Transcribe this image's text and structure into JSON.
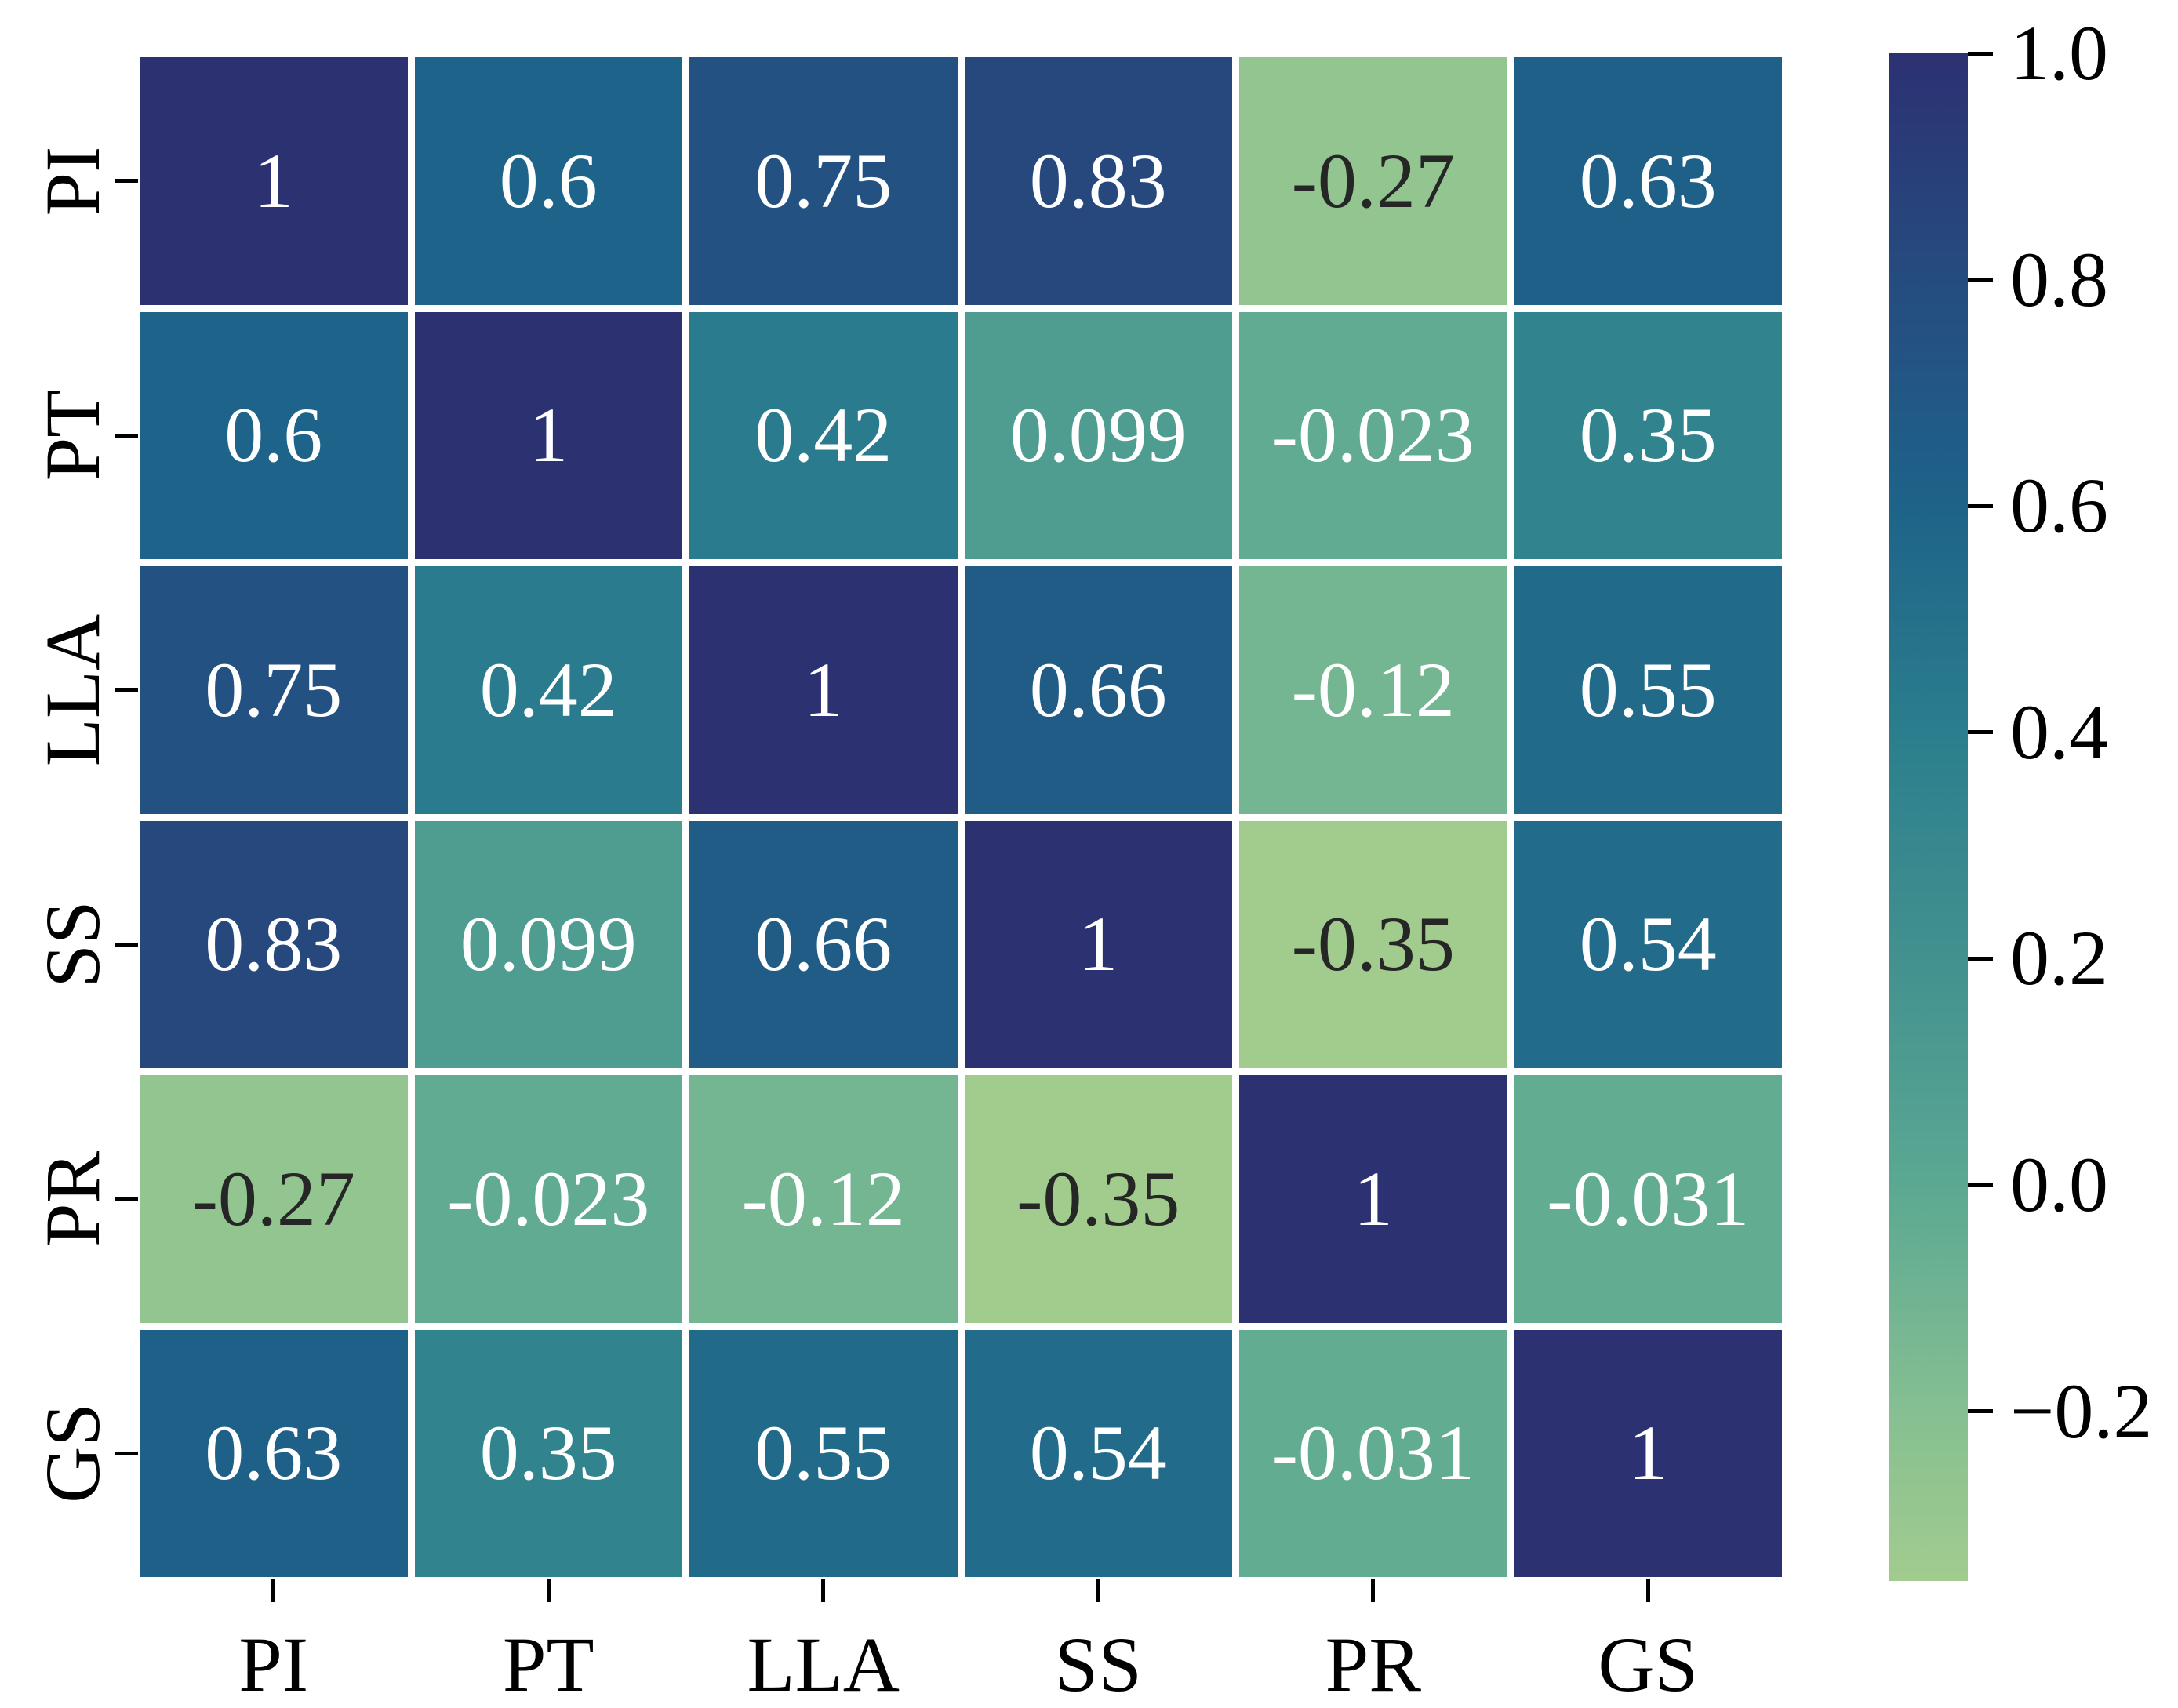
{
  "chart_data": {
    "type": "heatmap",
    "title": "",
    "xlabel": "",
    "ylabel": "",
    "categories_x": [
      "PI",
      "PT",
      "LLA",
      "SS",
      "PR",
      "GS"
    ],
    "categories_y": [
      "PI",
      "PT",
      "LLA",
      "SS",
      "PR",
      "GS"
    ],
    "matrix": [
      [
        1.0,
        0.6,
        0.75,
        0.83,
        -0.27,
        0.63
      ],
      [
        0.6,
        1.0,
        0.42,
        0.099,
        -0.023,
        0.35
      ],
      [
        0.75,
        0.42,
        1.0,
        0.66,
        -0.12,
        0.55
      ],
      [
        0.83,
        0.099,
        0.66,
        1.0,
        -0.35,
        0.54
      ],
      [
        -0.27,
        -0.023,
        -0.12,
        -0.35,
        1.0,
        -0.031
      ],
      [
        0.63,
        0.35,
        0.55,
        0.54,
        -0.031,
        1.0
      ]
    ],
    "cell_labels": [
      [
        "1",
        "0.6",
        "0.75",
        "0.83",
        "-0.27",
        "0.63"
      ],
      [
        "0.6",
        "1",
        "0.42",
        "0.099",
        "-0.023",
        "0.35"
      ],
      [
        "0.75",
        "0.42",
        "1",
        "0.66",
        "-0.12",
        "0.55"
      ],
      [
        "0.83",
        "0.099",
        "0.66",
        "1",
        "-0.35",
        "0.54"
      ],
      [
        "-0.27",
        "-0.023",
        "-0.12",
        "-0.35",
        "1",
        "-0.031"
      ],
      [
        "0.63",
        "0.35",
        "0.55",
        "0.54",
        "-0.031",
        "1"
      ]
    ],
    "colorbar": {
      "vmin": -0.35,
      "vmax": 1.0,
      "tick_labels": [
        "1.0",
        "0.8",
        "0.6",
        "0.4",
        "0.2",
        "0.0",
        "−0.2"
      ],
      "tick_values": [
        1.0,
        0.8,
        0.6,
        0.4,
        0.2,
        0.0,
        -0.2
      ],
      "position": "right"
    },
    "colormap": {
      "name": "crest",
      "stops": [
        {
          "value": -0.35,
          "color": "#a2cc8e"
        },
        {
          "value": -0.2,
          "color": "#86bf92"
        },
        {
          "value": 0.0,
          "color": "#5ba892"
        },
        {
          "value": 0.2,
          "color": "#42918f"
        },
        {
          "value": 0.4,
          "color": "#2b7e8d"
        },
        {
          "value": 0.6,
          "color": "#1e6389"
        },
        {
          "value": 0.8,
          "color": "#254c7f"
        },
        {
          "value": 1.0,
          "color": "#2c3172"
        }
      ]
    },
    "annotation_colors": {
      "on_dark": "#ffffff",
      "on_light": "#262626"
    },
    "grid": false,
    "legend": false
  }
}
